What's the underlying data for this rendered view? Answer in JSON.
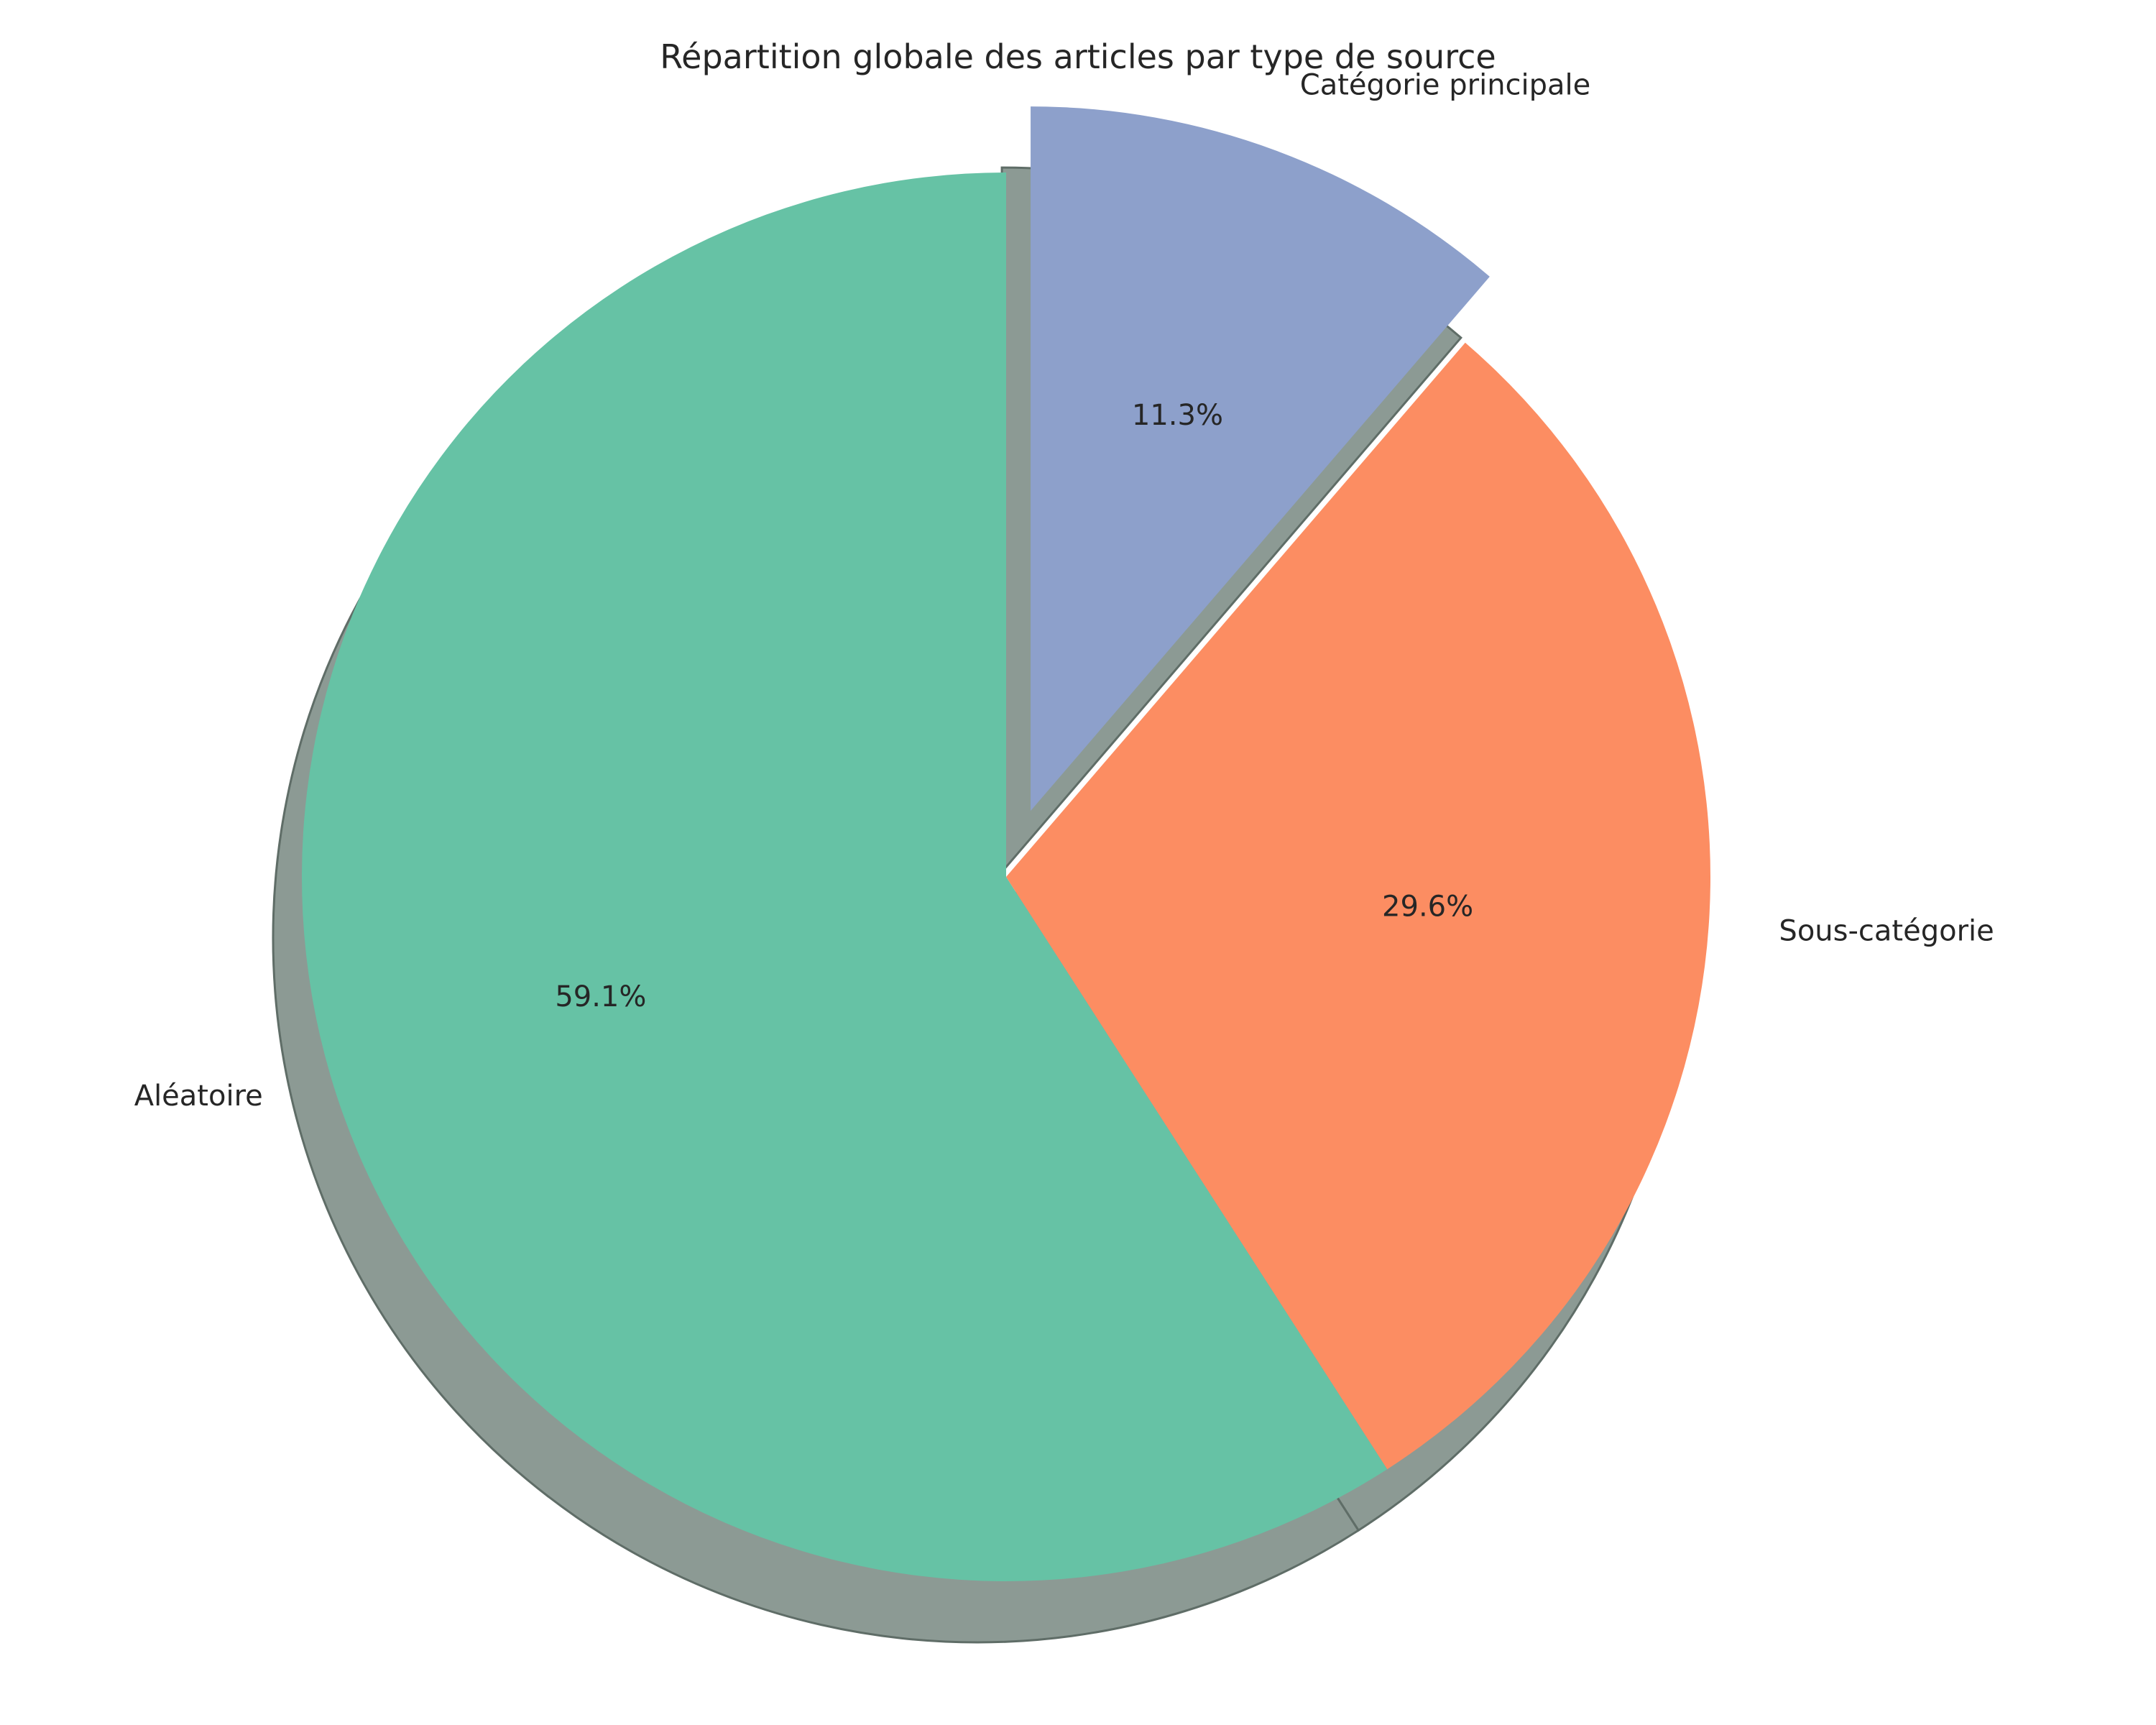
{
  "chart_data": {
    "type": "pie",
    "title": "Répartition globale des articles par type de source",
    "slices": [
      {
        "label": "Aléatoire",
        "value": 59.1,
        "pct_label": "59.1%",
        "color": "#66c2a5",
        "exploded": false
      },
      {
        "label": "Sous-catégorie",
        "value": 29.6,
        "pct_label": "29.6%",
        "color": "#fc8d62",
        "exploded": false
      },
      {
        "label": "Catégorie principale",
        "value": 11.3,
        "pct_label": "11.3%",
        "color": "#8da0cb",
        "exploded": true
      }
    ],
    "start_angle": 90,
    "direction": "counterclockwise",
    "shadow": true,
    "shadow_color": "#8c9a94"
  }
}
